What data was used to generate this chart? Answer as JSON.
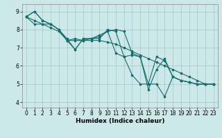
{
  "title": "",
  "xlabel": "Humidex (Indice chaleur)",
  "xlim": [
    -0.5,
    23.5
  ],
  "ylim": [
    3.7,
    9.4
  ],
  "yticks": [
    4,
    5,
    6,
    7,
    8,
    9
  ],
  "xticks": [
    0,
    1,
    2,
    3,
    4,
    5,
    6,
    7,
    8,
    9,
    10,
    11,
    12,
    13,
    14,
    15,
    16,
    17,
    18,
    19,
    20,
    21,
    22,
    23
  ],
  "xtick_labels": [
    "0",
    "1",
    "2",
    "3",
    "4",
    "5",
    "6",
    "7",
    "8",
    "9",
    "10",
    "11",
    "12",
    "13",
    "14",
    "15",
    "16",
    "17",
    "18",
    "19",
    "20",
    "21",
    "22",
    "23"
  ],
  "bg_color": "#cce8e8",
  "grid_color": "#aacccc",
  "line_color": "#1a6b6b",
  "series": [
    [
      8.7,
      9.0,
      8.5,
      8.3,
      8.0,
      7.4,
      6.9,
      7.5,
      7.5,
      7.7,
      7.9,
      8.0,
      7.9,
      6.7,
      6.5,
      4.7,
      5.8,
      6.4,
      5.4,
      5.2,
      5.1,
      5.0,
      5.0,
      5.0
    ],
    [
      8.7,
      9.0,
      8.5,
      8.3,
      8.0,
      7.4,
      7.5,
      7.4,
      7.5,
      7.5,
      8.0,
      7.9,
      6.5,
      6.6,
      6.5,
      5.0,
      6.5,
      6.3,
      5.4,
      5.2,
      5.1,
      5.0,
      5.0,
      5.0
    ],
    [
      8.7,
      8.3,
      8.3,
      8.3,
      8.0,
      7.5,
      6.9,
      7.5,
      7.5,
      7.6,
      7.9,
      6.7,
      6.5,
      5.5,
      5.0,
      5.0,
      5.0,
      4.3,
      5.4,
      5.2,
      5.1,
      5.0,
      5.0,
      5.0
    ],
    [
      8.7,
      8.5,
      8.3,
      8.1,
      7.9,
      7.4,
      7.4,
      7.4,
      7.4,
      7.4,
      7.3,
      7.2,
      7.0,
      6.8,
      6.6,
      6.4,
      6.2,
      6.0,
      5.8,
      5.6,
      5.4,
      5.2,
      5.0,
      5.0
    ]
  ]
}
